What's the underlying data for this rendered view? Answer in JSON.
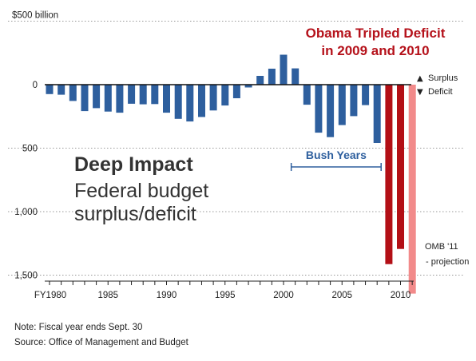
{
  "headline": {
    "line1": "Obama Tripled Deficit",
    "line2": "in 2009 and 2010"
  },
  "title": {
    "main": "Deep Impact",
    "sub_line1": "Federal budget",
    "sub_line2": "surplus/deficit"
  },
  "notes": {
    "line1": "Note: Fiscal year ends Sept. 30",
    "line2": "Source: Office of Management and Budget"
  },
  "colors": {
    "regular": "#2e5f9e",
    "obama": "#b30f16",
    "projection": "#f28a8a",
    "headline": "#b5121b",
    "bush_label": "#2e5f9e"
  },
  "chart_data": {
    "type": "bar",
    "title": "Federal budget surplus/deficit",
    "ylabel": "$500 billion",
    "y_tick_labels": [
      "$500 billion",
      "0",
      "500",
      "1,000",
      "1,500"
    ],
    "y_tick_values": [
      500,
      0,
      -500,
      -1000,
      -1500
    ],
    "ylim": [
      -1550,
      560
    ],
    "x_tick_labels": [
      "FY1980",
      "1985",
      "1990",
      "1995",
      "2000",
      "2005",
      "2010"
    ],
    "x_tick_values": [
      1980,
      1985,
      1990,
      1995,
      2000,
      2005,
      2010
    ],
    "grid": true,
    "legend": [
      {
        "marker": "▲",
        "label": "Surplus"
      },
      {
        "marker": "▼",
        "label": "Deficit"
      }
    ],
    "legend_position": "right of zero line",
    "annotations": [
      {
        "text": "Bush Years",
        "from": 2001,
        "to": 2008
      },
      {
        "text": "OMB '11",
        "note": "- projection",
        "year": 2011
      }
    ],
    "series": [
      {
        "x": [
          1980,
          1981,
          1982,
          1983,
          1984,
          1985,
          1986,
          1987,
          1988,
          1989,
          1990,
          1991,
          1992,
          1993,
          1994,
          1995,
          1996,
          1997,
          1998,
          1999,
          2000,
          2001,
          2002,
          2003,
          2004,
          2005,
          2006,
          2007,
          2008,
          2009,
          2010,
          2011
        ],
        "values": [
          -74,
          -79,
          -128,
          -208,
          -185,
          -212,
          -221,
          -150,
          -155,
          -153,
          -221,
          -269,
          -290,
          -255,
          -203,
          -164,
          -107,
          -22,
          69,
          126,
          236,
          128,
          -158,
          -378,
          -413,
          -318,
          -248,
          -161,
          -459,
          -1413,
          -1294,
          -1645
        ],
        "kind": [
          "regular",
          "regular",
          "regular",
          "regular",
          "regular",
          "regular",
          "regular",
          "regular",
          "regular",
          "regular",
          "regular",
          "regular",
          "regular",
          "regular",
          "regular",
          "regular",
          "regular",
          "regular",
          "regular",
          "regular",
          "regular",
          "regular",
          "regular",
          "regular",
          "regular",
          "regular",
          "regular",
          "regular",
          "regular",
          "obama",
          "obama",
          "projection"
        ]
      }
    ]
  }
}
